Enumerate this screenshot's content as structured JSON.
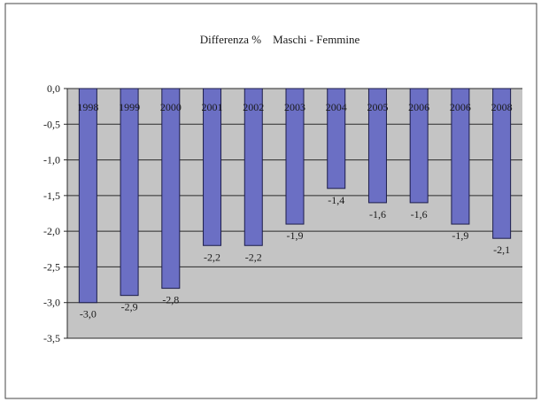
{
  "chart_data": {
    "type": "bar",
    "title": "Differenza %    Maschi - Femmine",
    "categories": [
      "1998",
      "1999",
      "2000",
      "2001",
      "2002",
      "2003",
      "2004",
      "2005",
      "2006",
      "2006",
      "2008"
    ],
    "values": [
      -3.0,
      -2.9,
      -2.8,
      -2.2,
      -2.2,
      -1.9,
      -1.4,
      -1.6,
      -1.6,
      -1.9,
      -2.1
    ],
    "value_labels": [
      "-3,0",
      "-2,9",
      "-2,8",
      "-2,2",
      "-2,2",
      "-1,9",
      "-1,4",
      "-1,6",
      "-1,6",
      "-1,9",
      "-2,1"
    ],
    "y_ticks": [
      0.0,
      -0.5,
      -1.0,
      -1.5,
      -2.0,
      -2.5,
      -3.0,
      -3.5
    ],
    "y_tick_labels": [
      "0,0",
      "-0,5",
      "-1,0",
      "-1,5",
      "-2,0",
      "-2,5",
      "-3,0",
      "-3,5"
    ],
    "ylim": [
      -3.5,
      0
    ],
    "xlabel": "",
    "ylabel": "",
    "grid": true,
    "legend": "none",
    "colors": {
      "bar_fill": "#6b6fc4",
      "bar_stroke": "#1c1d4a",
      "plot_background": "#c4c4c4",
      "gridline": "#2a2a2a",
      "text": "#1a1a1a"
    }
  }
}
